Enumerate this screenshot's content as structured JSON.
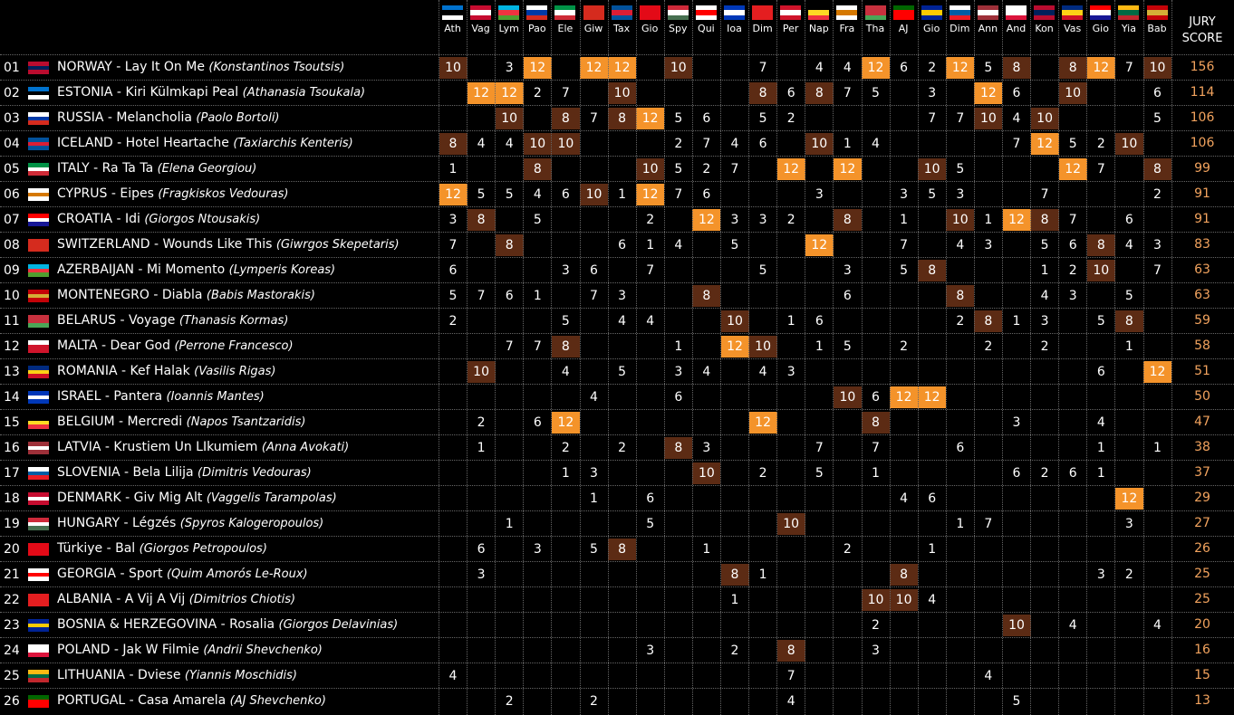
{
  "voters": [
    {
      "name": "Ath",
      "flag": [
        "#0072ce",
        "#000000",
        "#ffffff"
      ]
    },
    {
      "name": "Vag",
      "flag": [
        "#c60c30",
        "#ffffff",
        "#c60c30"
      ]
    },
    {
      "name": "Lym",
      "flag": [
        "#00b5e2",
        "#ef3340",
        "#509e2f"
      ]
    },
    {
      "name": "Pao",
      "flag": [
        "#ffffff",
        "#0039a6",
        "#d52b1e"
      ]
    },
    {
      "name": "Ele",
      "flag": [
        "#009246",
        "#ffffff",
        "#ce2b37"
      ]
    },
    {
      "name": "Giw",
      "flag": [
        "#d52b1e",
        "#d52b1e",
        "#d52b1e"
      ]
    },
    {
      "name": "Tax",
      "flag": [
        "#02529c",
        "#dc1e35",
        "#02529c"
      ]
    },
    {
      "name": "Gio",
      "flag": [
        "#e30a17",
        "#e30a17",
        "#e30a17"
      ]
    },
    {
      "name": "Spy",
      "flag": [
        "#ce2939",
        "#ffffff",
        "#477050"
      ]
    },
    {
      "name": "Qui",
      "flag": [
        "#ffffff",
        "#ff0000",
        "#ffffff"
      ]
    },
    {
      "name": "Ioa",
      "flag": [
        "#0038b8",
        "#ffffff",
        "#0038b8"
      ]
    },
    {
      "name": "Dim",
      "flag": [
        "#e41e20",
        "#e41e20",
        "#e41e20"
      ]
    },
    {
      "name": "Per",
      "flag": [
        "#cf142b",
        "#ffffff",
        "#cf142b"
      ]
    },
    {
      "name": "Nap",
      "flag": [
        "#000000",
        "#fdda24",
        "#ef3340"
      ]
    },
    {
      "name": "Fra",
      "flag": [
        "#ffffff",
        "#d57800",
        "#ffffff"
      ]
    },
    {
      "name": "Tha",
      "flag": [
        "#c8313e",
        "#c8313e",
        "#4aa657"
      ]
    },
    {
      "name": "AJ",
      "flag": [
        "#006600",
        "#ff0000",
        "#ff0000"
      ]
    },
    {
      "name": "Gio",
      "flag": [
        "#002395",
        "#fecb00",
        "#002395"
      ]
    },
    {
      "name": "Dim",
      "flag": [
        "#ffffff",
        "#005da4",
        "#ed1c24"
      ]
    },
    {
      "name": "Ann",
      "flag": [
        "#9e3039",
        "#ffffff",
        "#9e3039"
      ]
    },
    {
      "name": "And",
      "flag": [
        "#ffffff",
        "#ffffff",
        "#dc143c"
      ]
    },
    {
      "name": "Kon",
      "flag": [
        "#ba0c2f",
        "#00205b",
        "#ba0c2f"
      ]
    },
    {
      "name": "Vas",
      "flag": [
        "#002b7f",
        "#fcd116",
        "#ce1126"
      ]
    },
    {
      "name": "Gio",
      "flag": [
        "#ff0000",
        "#ffffff",
        "#171796"
      ]
    },
    {
      "name": "Yia",
      "flag": [
        "#fdb913",
        "#006a44",
        "#c1272d"
      ]
    },
    {
      "name": "Bab",
      "flag": [
        "#c40308",
        "#d4af37",
        "#c40308"
      ]
    }
  ],
  "jury_header": [
    "JURY",
    "SCORE"
  ],
  "rows": [
    {
      "rank": "01",
      "country": "NORWAY",
      "song": "Lay It On Me",
      "author": "(Konstantinos Tsoutsis)",
      "flag": [
        "#ba0c2f",
        "#00205b",
        "#ba0c2f"
      ],
      "points": [
        10,
        "",
        3,
        12,
        "",
        12,
        12,
        "",
        10,
        "",
        "",
        7,
        "",
        4,
        4,
        12,
        6,
        2,
        12,
        5,
        8,
        "",
        8,
        12,
        7,
        10
      ],
      "score": "156"
    },
    {
      "rank": "02",
      "country": "ESTONIA",
      "song": "Kiri Külmkapi Peal",
      "author": "(Athanasia Tsoukala)",
      "flag": [
        "#0072ce",
        "#000000",
        "#ffffff"
      ],
      "points": [
        "",
        12,
        12,
        2,
        7,
        "",
        10,
        "",
        "",
        "",
        "",
        8,
        6,
        8,
        7,
        5,
        "",
        3,
        "",
        12,
        6,
        "",
        10,
        "",
        "",
        6
      ],
      "score": "114"
    },
    {
      "rank": "03",
      "country": "RUSSIA",
      "song": "Melancholia",
      "author": "(Paolo Bortoli)",
      "flag": [
        "#ffffff",
        "#0039a6",
        "#d52b1e"
      ],
      "points": [
        "",
        "",
        10,
        "",
        8,
        7,
        8,
        12,
        5,
        6,
        "",
        5,
        2,
        "",
        "",
        "",
        "",
        7,
        7,
        10,
        4,
        10,
        "",
        "",
        "",
        5
      ],
      "score": "106"
    },
    {
      "rank": "04",
      "country": "ICELAND",
      "song": "Hotel Heartache",
      "author": "(Taxiarchis Kenteris)",
      "flag": [
        "#02529c",
        "#dc1e35",
        "#02529c"
      ],
      "points": [
        8,
        4,
        4,
        10,
        10,
        "",
        "",
        "",
        2,
        7,
        4,
        6,
        "",
        10,
        1,
        4,
        "",
        "",
        "",
        "",
        7,
        12,
        5,
        2,
        10,
        ""
      ],
      "score": "106"
    },
    {
      "rank": "05",
      "country": "ITALY",
      "song": "Ra Ta Ta",
      "author": "(Elena Georgiou)",
      "flag": [
        "#009246",
        "#ffffff",
        "#ce2b37"
      ],
      "points": [
        1,
        "",
        "",
        8,
        "",
        "",
        "",
        10,
        5,
        2,
        7,
        "",
        12,
        "",
        12,
        "",
        "",
        10,
        5,
        "",
        "",
        "",
        12,
        7,
        "",
        8
      ],
      "score": "99"
    },
    {
      "rank": "06",
      "country": "CYPRUS",
      "song": "Eipes",
      "author": "(Fragkiskos Vedouras)",
      "flag": [
        "#ffffff",
        "#d57800",
        "#ffffff"
      ],
      "points": [
        12,
        5,
        5,
        4,
        6,
        10,
        1,
        12,
        7,
        6,
        "",
        "",
        "",
        3,
        "",
        "",
        3,
        5,
        3,
        "",
        "",
        7,
        "",
        "",
        "",
        2
      ],
      "score": "91"
    },
    {
      "rank": "07",
      "country": "CROATIA",
      "song": "Idi",
      "author": "(Giorgos Ntousakis)",
      "flag": [
        "#ff0000",
        "#ffffff",
        "#171796"
      ],
      "points": [
        3,
        8,
        "",
        5,
        "",
        "",
        "",
        2,
        "",
        12,
        3,
        3,
        2,
        "",
        8,
        "",
        1,
        "",
        10,
        1,
        12,
        8,
        7,
        "",
        6,
        ""
      ],
      "score": "91"
    },
    {
      "rank": "08",
      "country": "SWITZERLAND",
      "song": "Wounds Like This",
      "author": "(Giwrgos Skepetaris)",
      "flag": [
        "#d52b1e",
        "#d52b1e",
        "#d52b1e"
      ],
      "points": [
        7,
        "",
        8,
        "",
        "",
        "",
        6,
        1,
        4,
        "",
        5,
        "",
        "",
        12,
        "",
        "",
        7,
        "",
        4,
        3,
        "",
        5,
        6,
        8,
        4,
        3
      ],
      "score": "83"
    },
    {
      "rank": "09",
      "country": "AZERBAIJAN",
      "song": "Mi Momento",
      "author": "(Lymperis Koreas)",
      "flag": [
        "#00b5e2",
        "#ef3340",
        "#509e2f"
      ],
      "points": [
        6,
        "",
        "",
        "",
        3,
        6,
        "",
        7,
        "",
        "",
        "",
        5,
        "",
        "",
        3,
        "",
        5,
        8,
        "",
        "",
        "",
        1,
        2,
        10,
        "",
        7
      ],
      "score": "63"
    },
    {
      "rank": "10",
      "country": "MONTENEGRO",
      "song": "Diabla",
      "author": "(Babis Mastorakis)",
      "flag": [
        "#c40308",
        "#d4af37",
        "#c40308"
      ],
      "points": [
        5,
        7,
        6,
        1,
        "",
        7,
        3,
        "",
        "",
        8,
        "",
        "",
        "",
        "",
        6,
        "",
        "",
        "",
        8,
        "",
        "",
        4,
        3,
        "",
        5,
        ""
      ],
      "score": "63"
    },
    {
      "rank": "11",
      "country": "BELARUS",
      "song": "Voyage",
      "author": "(Thanasis Kormas)",
      "flag": [
        "#c8313e",
        "#c8313e",
        "#4aa657"
      ],
      "points": [
        2,
        "",
        "",
        "",
        5,
        "",
        4,
        4,
        "",
        "",
        10,
        "",
        1,
        6,
        "",
        "",
        "",
        "",
        2,
        8,
        1,
        3,
        "",
        5,
        8,
        ""
      ],
      "score": "59"
    },
    {
      "rank": "12",
      "country": "MALTA",
      "song": "Dear God",
      "author": "(Perrone Francesco)",
      "flag": [
        "#ffffff",
        "#cf142b",
        "#cf142b"
      ],
      "points": [
        "",
        "",
        7,
        7,
        8,
        "",
        "",
        "",
        1,
        "",
        12,
        10,
        "",
        1,
        5,
        "",
        2,
        "",
        "",
        2,
        "",
        2,
        "",
        "",
        1,
        ""
      ],
      "score": "58"
    },
    {
      "rank": "13",
      "country": "ROMANIA",
      "song": "Kef Halak",
      "author": "(Vasilis Rigas)",
      "flag": [
        "#002b7f",
        "#fcd116",
        "#ce1126"
      ],
      "points": [
        "",
        10,
        "",
        "",
        4,
        "",
        5,
        "",
        3,
        4,
        "",
        4,
        3,
        "",
        "",
        "",
        "",
        "",
        "",
        "",
        "",
        "",
        "",
        6,
        "",
        12
      ],
      "score": "51"
    },
    {
      "rank": "14",
      "country": "ISRAEL",
      "song": "Pantera",
      "author": "(Ioannis Mantes)",
      "flag": [
        "#0038b8",
        "#ffffff",
        "#0038b8"
      ],
      "points": [
        "",
        "",
        "",
        "",
        "",
        4,
        "",
        "",
        6,
        "",
        "",
        "",
        "",
        "",
        10,
        6,
        12,
        12,
        "",
        "",
        "",
        "",
        "",
        "",
        "",
        ""
      ],
      "score": "50"
    },
    {
      "rank": "15",
      "country": "BELGIUM",
      "song": "Mercredi",
      "author": "(Napos Tsantzaridis)",
      "flag": [
        "#000000",
        "#fdda24",
        "#ef3340"
      ],
      "points": [
        "",
        2,
        "",
        6,
        12,
        "",
        "",
        "",
        "",
        "",
        "",
        12,
        "",
        "",
        "",
        8,
        "",
        "",
        "",
        "",
        3,
        "",
        "",
        4,
        "",
        ""
      ],
      "score": "47"
    },
    {
      "rank": "16",
      "country": "LATVIA",
      "song": "Krustiem Un LIkumiem",
      "author": "(Anna Avokati)",
      "flag": [
        "#9e3039",
        "#ffffff",
        "#9e3039"
      ],
      "points": [
        "",
        1,
        "",
        "",
        2,
        "",
        2,
        "",
        8,
        3,
        "",
        "",
        "",
        7,
        "",
        7,
        "",
        "",
        6,
        "",
        "",
        "",
        "",
        1,
        "",
        1
      ],
      "score": "38"
    },
    {
      "rank": "17",
      "country": "SLOVENIA",
      "song": "Bela Lilija",
      "author": "(Dimitris Vedouras)",
      "flag": [
        "#ffffff",
        "#005da4",
        "#ed1c24"
      ],
      "points": [
        "",
        "",
        "",
        "",
        1,
        3,
        "",
        "",
        "",
        10,
        "",
        2,
        "",
        5,
        "",
        1,
        "",
        "",
        "",
        "",
        6,
        2,
        6,
        1,
        "",
        ""
      ],
      "score": "37"
    },
    {
      "rank": "18",
      "country": "DENMARK",
      "song": "Giv Mig Alt",
      "author": "(Vaggelis Tarampolas)",
      "flag": [
        "#c60c30",
        "#ffffff",
        "#c60c30"
      ],
      "points": [
        "",
        "",
        "",
        "",
        "",
        1,
        "",
        6,
        "",
        "",
        "",
        "",
        "",
        "",
        "",
        "",
        4,
        6,
        "",
        "",
        "",
        "",
        "",
        "",
        12,
        ""
      ],
      "score": "29"
    },
    {
      "rank": "19",
      "country": "HUNGARY",
      "song": "Légzés",
      "author": "(Spyros Kalogeropoulos)",
      "flag": [
        "#ce2939",
        "#ffffff",
        "#477050"
      ],
      "points": [
        "",
        "",
        1,
        "",
        "",
        "",
        "",
        5,
        "",
        "",
        "",
        "",
        10,
        "",
        "",
        "",
        "",
        "",
        1,
        7,
        "",
        "",
        "",
        "",
        3,
        ""
      ],
      "score": "27"
    },
    {
      "rank": "20",
      "country": "Türkiye",
      "song": "Bal",
      "author": "(Giorgos Petropoulos)",
      "flag": [
        "#e30a17",
        "#e30a17",
        "#e30a17"
      ],
      "points": [
        "",
        6,
        "",
        3,
        "",
        5,
        8,
        "",
        "",
        1,
        "",
        "",
        "",
        "",
        2,
        "",
        "",
        1,
        "",
        "",
        "",
        "",
        "",
        "",
        "",
        ""
      ],
      "score": "26"
    },
    {
      "rank": "21",
      "country": "GEORGIA",
      "song": "Sport",
      "author": "(Quim Amorós Le-Roux)",
      "flag": [
        "#ffffff",
        "#ff0000",
        "#ffffff"
      ],
      "points": [
        "",
        3,
        "",
        "",
        "",
        "",
        "",
        "",
        "",
        "",
        8,
        1,
        "",
        "",
        "",
        "",
        8,
        "",
        "",
        "",
        "",
        "",
        "",
        3,
        2,
        ""
      ],
      "score": "25"
    },
    {
      "rank": "22",
      "country": "ALBANIA",
      "song": "A Vij A Vij",
      "author": "(Dimitrios Chiotis)",
      "flag": [
        "#e41e20",
        "#e41e20",
        "#e41e20"
      ],
      "points": [
        "",
        "",
        "",
        "",
        "",
        "",
        "",
        "",
        "",
        "",
        1,
        "",
        "",
        "",
        "",
        10,
        10,
        4,
        "",
        "",
        "",
        "",
        "",
        "",
        "",
        ""
      ],
      "score": "25"
    },
    {
      "rank": "23",
      "country": "BOSNIA & HERZEGOVINA",
      "song": "Rosalia",
      "author": "(Giorgos Delavinias)",
      "flag": [
        "#002395",
        "#fecb00",
        "#002395"
      ],
      "points": [
        "",
        "",
        "",
        "",
        "",
        "",
        "",
        "",
        "",
        "",
        "",
        "",
        "",
        "",
        "",
        2,
        "",
        "",
        "",
        "",
        10,
        "",
        4,
        "",
        "",
        4
      ],
      "score": "20"
    },
    {
      "rank": "24",
      "country": "POLAND",
      "song": "Jak W Filmie",
      "author": "(Andrii Shevchenko)",
      "flag": [
        "#ffffff",
        "#ffffff",
        "#dc143c"
      ],
      "points": [
        "",
        "",
        "",
        "",
        "",
        "",
        "",
        3,
        "",
        "",
        2,
        "",
        8,
        "",
        "",
        3,
        "",
        "",
        "",
        "",
        "",
        "",
        "",
        "",
        "",
        ""
      ],
      "score": "16"
    },
    {
      "rank": "25",
      "country": "LITHUANIA",
      "song": "Dviese",
      "author": "(Yiannis Moschidis)",
      "flag": [
        "#fdb913",
        "#006a44",
        "#c1272d"
      ],
      "points": [
        4,
        "",
        "",
        "",
        "",
        "",
        "",
        "",
        "",
        "",
        "",
        "",
        7,
        "",
        "",
        "",
        "",
        "",
        "",
        4,
        "",
        "",
        "",
        "",
        "",
        ""
      ],
      "score": "15"
    },
    {
      "rank": "26",
      "country": "PORTUGAL",
      "song": "Casa Amarela",
      "author": "(AJ Shevchenko)",
      "flag": [
        "#006600",
        "#ff0000",
        "#ff0000"
      ],
      "points": [
        "",
        "",
        2,
        "",
        "",
        2,
        "",
        "",
        "",
        "",
        "",
        "",
        4,
        "",
        "",
        "",
        "",
        "",
        "",
        "",
        5,
        "",
        "",
        "",
        "",
        ""
      ],
      "score": "13"
    }
  ]
}
